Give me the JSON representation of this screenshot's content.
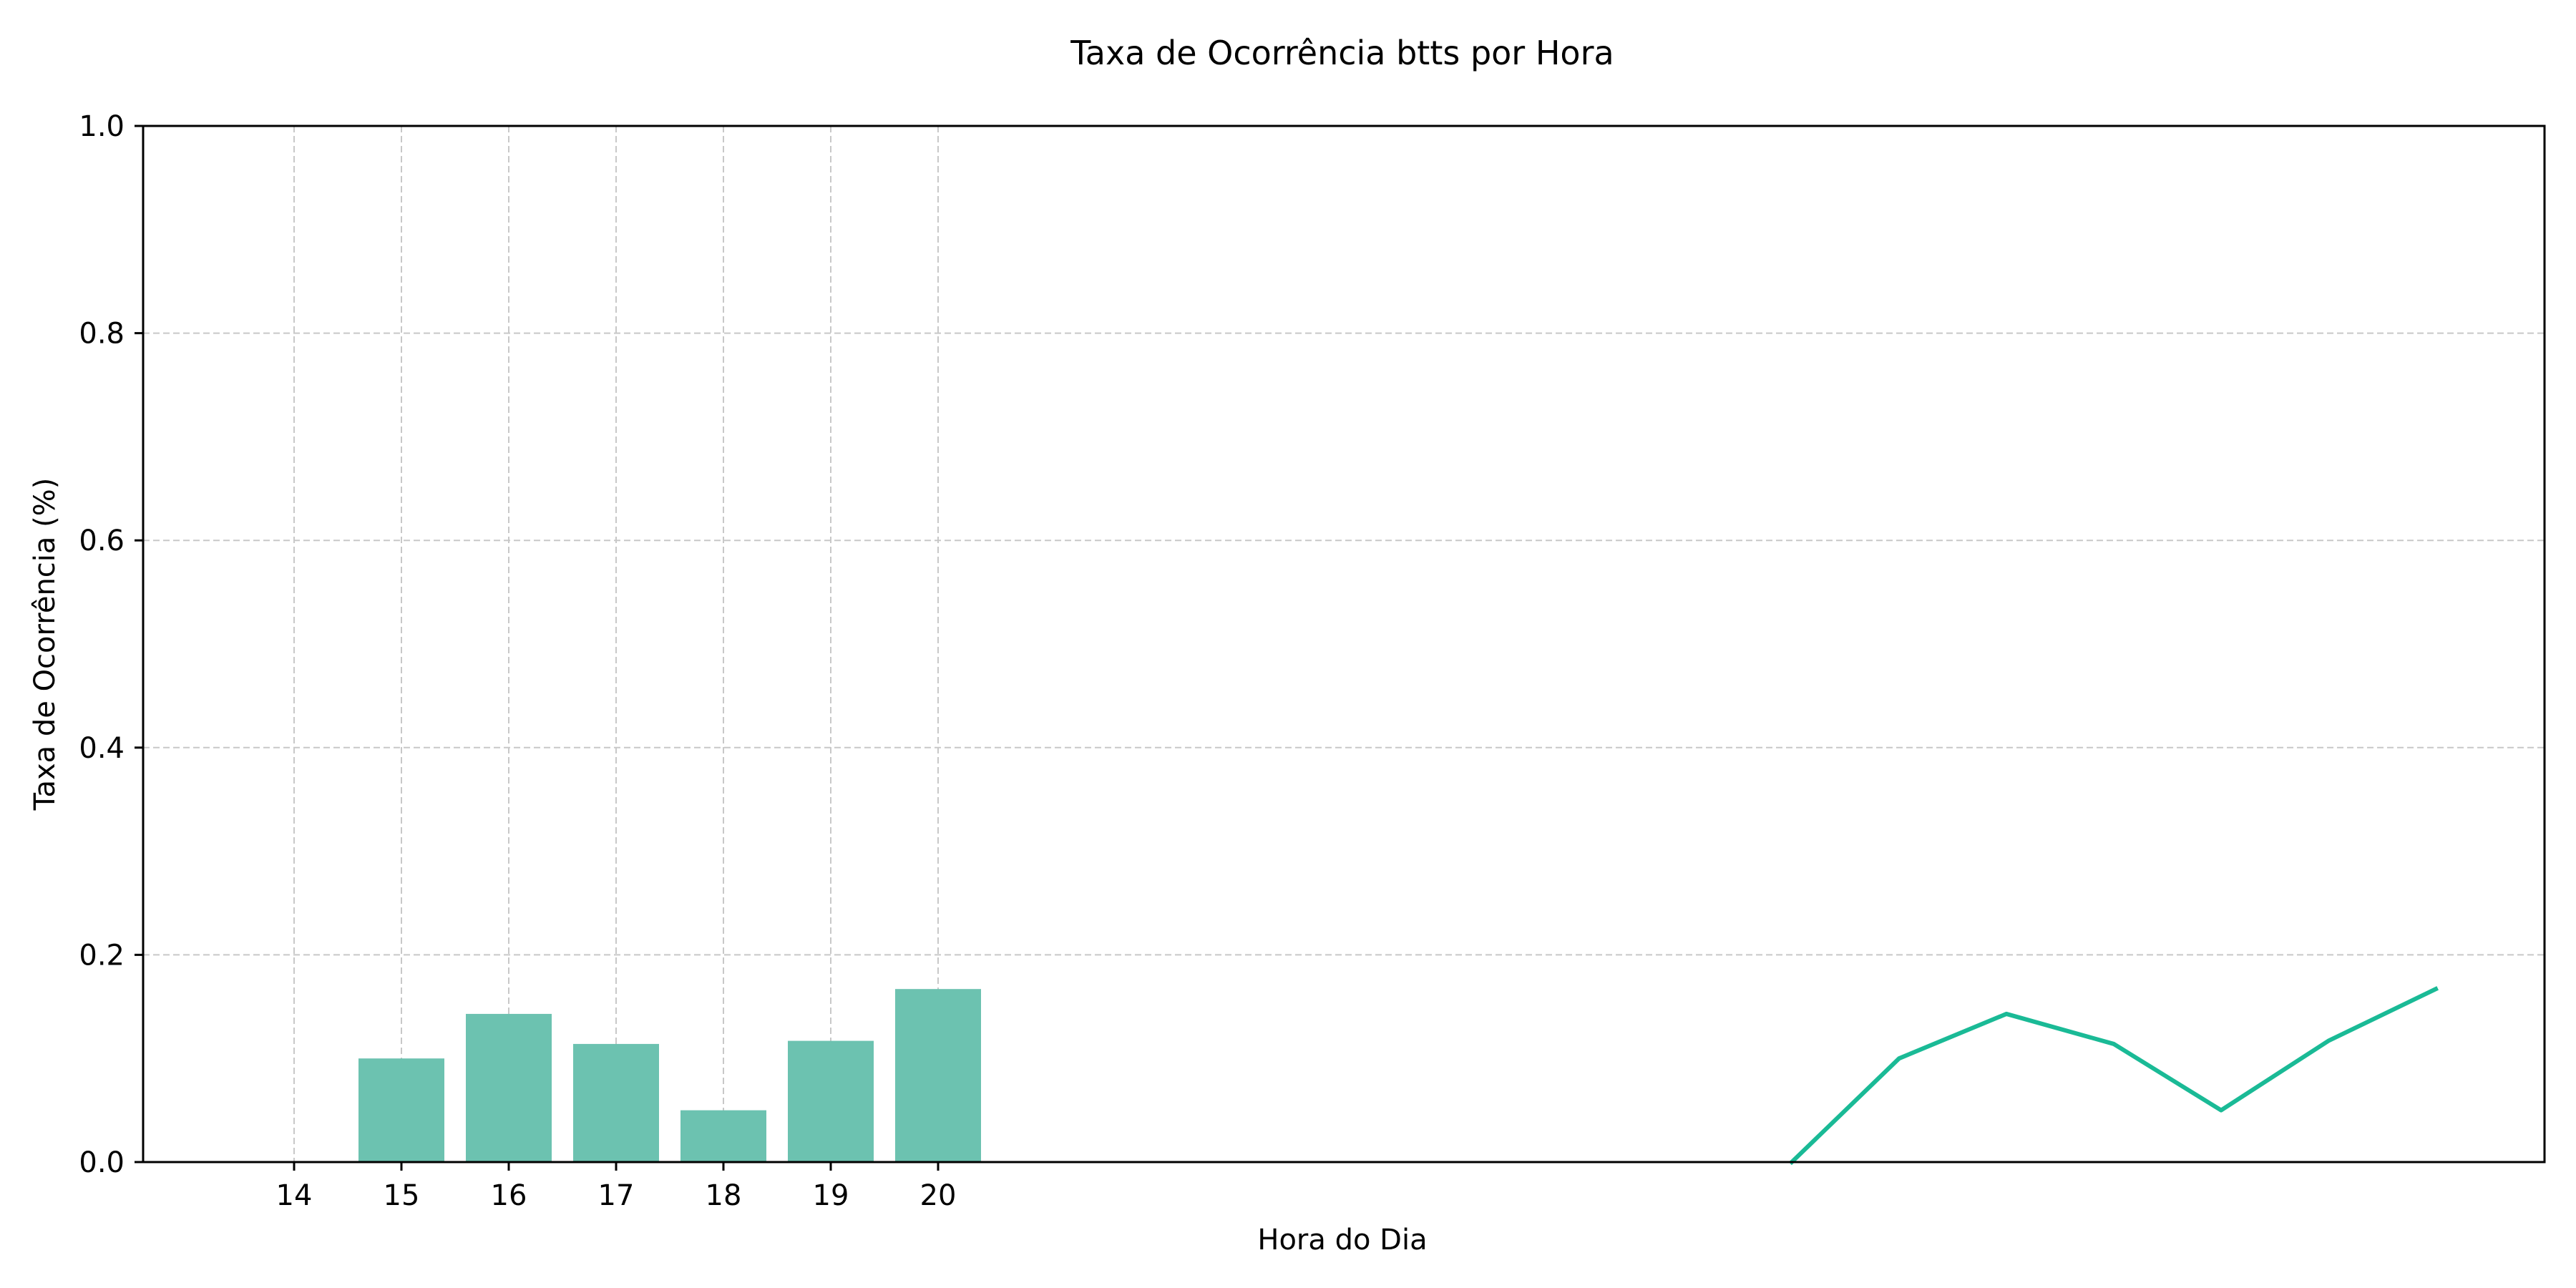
{
  "chart_data": {
    "type": "bar",
    "title": "Taxa de Ocorrência btts por Hora",
    "xlabel": "Hora do Dia",
    "ylabel": "Taxa de Ocorrência (%)",
    "ylim": [
      0,
      1.0
    ],
    "yticks": [
      "0.0",
      "0.2",
      "0.4",
      "0.6",
      "0.8",
      "1.0"
    ],
    "grid": true,
    "categories": [
      "14",
      "15",
      "16",
      "17",
      "18",
      "19",
      "20"
    ],
    "values": [
      0.0,
      0.1,
      0.143,
      0.114,
      0.05,
      0.117,
      0.167
    ],
    "line_values": [
      0.0,
      0.1,
      0.143,
      0.114,
      0.05,
      0.117,
      0.167
    ],
    "colors": {
      "bar": "#6cc2b0",
      "line": "#1aba96",
      "grid": "#c8c8c8"
    }
  }
}
